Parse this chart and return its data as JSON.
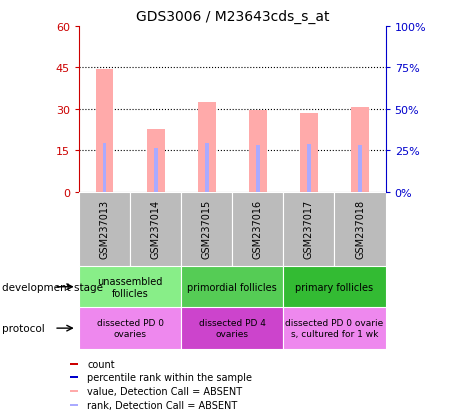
{
  "title": "GDS3006 / M23643cds_s_at",
  "samples": [
    "GSM237013",
    "GSM237014",
    "GSM237015",
    "GSM237016",
    "GSM237017",
    "GSM237018"
  ],
  "pink_bar_values": [
    44.5,
    22.5,
    32.5,
    29.5,
    28.5,
    30.5
  ],
  "blue_bar_values": [
    29.5,
    26.5,
    29.0,
    28.0,
    28.5,
    28.0
  ],
  "left_yticks": [
    0,
    15,
    30,
    45,
    60
  ],
  "right_yticks": [
    0,
    25,
    50,
    75,
    100
  ],
  "left_yticklabels": [
    "0",
    "15",
    "30",
    "45",
    "60"
  ],
  "right_yticklabels": [
    "0%",
    "25%",
    "50%",
    "75%",
    "100%"
  ],
  "left_ylim": [
    0,
    60
  ],
  "right_ylim": [
    0,
    100
  ],
  "left_color": "#cc0000",
  "right_color": "#0000cc",
  "pink_color": "#ffaaaa",
  "blue_color": "#aaaaff",
  "dev_stage_groups": [
    {
      "label": "unassembled\nfollicles",
      "start": 0,
      "end": 2,
      "color": "#88ee88"
    },
    {
      "label": "primordial follicles",
      "start": 2,
      "end": 4,
      "color": "#55cc55"
    },
    {
      "label": "primary follicles",
      "start": 4,
      "end": 6,
      "color": "#33bb33"
    }
  ],
  "protocol_groups": [
    {
      "label": "dissected PD 0\novaries",
      "start": 0,
      "end": 2,
      "color": "#ee88ee"
    },
    {
      "label": "dissected PD 4\novaries",
      "start": 2,
      "end": 4,
      "color": "#cc44cc"
    },
    {
      "label": "dissected PD 0 ovarie\ns, cultured for 1 wk",
      "start": 4,
      "end": 6,
      "color": "#ee88ee"
    }
  ],
  "sample_bg_color": "#bbbbbb",
  "legend_items": [
    {
      "color": "#cc0000",
      "label": "count"
    },
    {
      "color": "#0000cc",
      "label": "percentile rank within the sample"
    },
    {
      "color": "#ffaaaa",
      "label": "value, Detection Call = ABSENT"
    },
    {
      "color": "#aaaaff",
      "label": "rank, Detection Call = ABSENT"
    }
  ],
  "dev_stage_label": "development stage",
  "protocol_label": "protocol",
  "grid_color": "#000000",
  "title_fontsize": 10
}
